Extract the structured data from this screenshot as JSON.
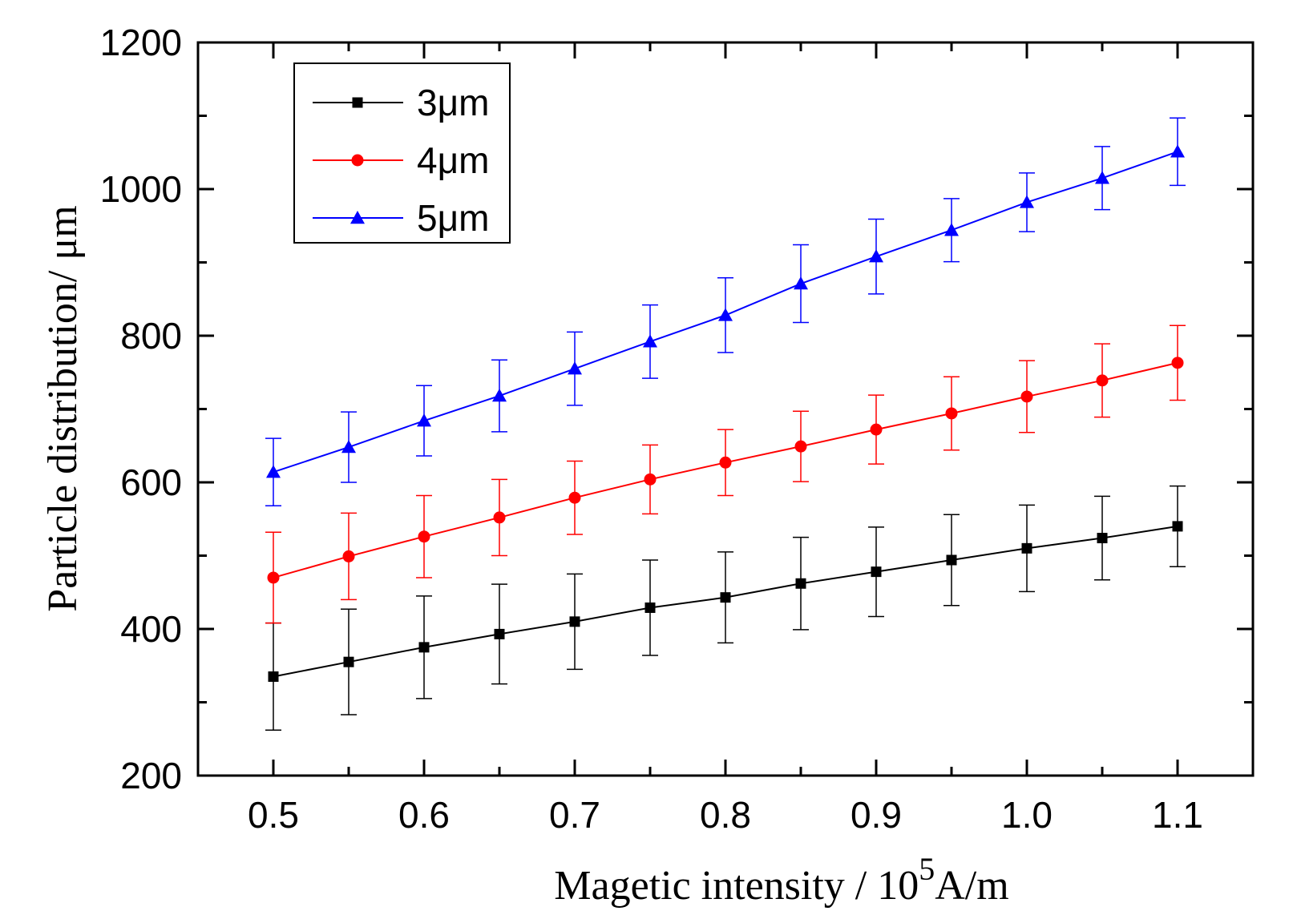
{
  "chart_data": {
    "type": "line",
    "title": "",
    "xlabel": {
      "prefix": "Magetic intensity / 10",
      "superscript": "5",
      "suffix": "A/m"
    },
    "ylabel": "Particle distribution/ μm",
    "xlim": [
      0.45,
      1.15
    ],
    "ylim": [
      200,
      1200
    ],
    "xticks": [
      "0.5",
      "0.6",
      "0.7",
      "0.8",
      "0.9",
      "1.0",
      "1.1"
    ],
    "xtick_values": [
      0.5,
      0.6,
      0.7,
      0.8,
      0.9,
      1.0,
      1.1
    ],
    "yticks": [
      "200",
      "400",
      "600",
      "800",
      "1000",
      "1200"
    ],
    "ytick_values": [
      200,
      400,
      600,
      800,
      1000,
      1200
    ],
    "grid": false,
    "legend_position": "top-left",
    "x": [
      0.5,
      0.55,
      0.6,
      0.65,
      0.7,
      0.75,
      0.8,
      0.85,
      0.9,
      0.95,
      1.0,
      1.05,
      1.1
    ],
    "series": [
      {
        "name": "3μm",
        "color": "#000000",
        "marker": "square",
        "values": [
          335,
          355,
          375,
          393,
          410,
          429,
          443,
          462,
          478,
          494,
          510,
          524,
          540
        ],
        "errors": [
          73,
          72,
          70,
          68,
          65,
          65,
          62,
          63,
          61,
          62,
          59,
          57,
          55
        ]
      },
      {
        "name": "4μm",
        "color": "#ff0000",
        "marker": "circle",
        "values": [
          470,
          499,
          526,
          552,
          579,
          604,
          627,
          649,
          672,
          694,
          717,
          739,
          763
        ],
        "errors": [
          62,
          59,
          56,
          52,
          50,
          47,
          45,
          48,
          47,
          50,
          49,
          50,
          51
        ]
      },
      {
        "name": "5μm",
        "color": "#0000ff",
        "marker": "triangle",
        "values": [
          614,
          648,
          684,
          718,
          755,
          792,
          828,
          871,
          908,
          944,
          982,
          1015,
          1051
        ],
        "errors": [
          46,
          48,
          48,
          49,
          50,
          50,
          51,
          53,
          51,
          43,
          40,
          43,
          46
        ]
      }
    ]
  }
}
